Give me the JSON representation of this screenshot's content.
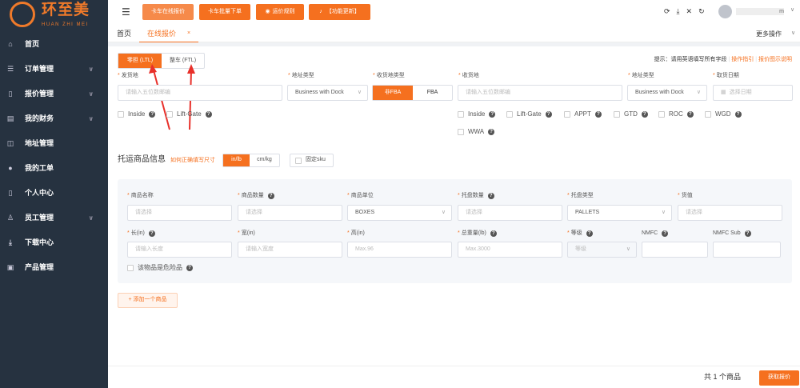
{
  "brand": {
    "name": "环至美",
    "sub": "HUAN ZHI MEI"
  },
  "sidebar": {
    "items": [
      {
        "label": "首页",
        "icon": "home-icon",
        "chev": false
      },
      {
        "label": "订单管理",
        "icon": "sliders-icon",
        "chev": true
      },
      {
        "label": "报价管理",
        "icon": "book-icon",
        "chev": true
      },
      {
        "label": "我的财务",
        "icon": "document-icon",
        "chev": true
      },
      {
        "label": "地址管理",
        "icon": "map-icon",
        "chev": false
      },
      {
        "label": "我的工单",
        "icon": "location-pin-icon",
        "chev": false
      },
      {
        "label": "个人中心",
        "icon": "phone-icon",
        "chev": false
      },
      {
        "label": "员工管理",
        "icon": "user-icon",
        "chev": true
      },
      {
        "label": "下载中心",
        "icon": "download-icon",
        "chev": false
      },
      {
        "label": "产品管理",
        "icon": "box-icon",
        "chev": false
      }
    ]
  },
  "header": {
    "buttons": [
      "卡车在线报价",
      "卡车批量下单",
      "运价规则",
      "【功能更新】"
    ],
    "username": "m"
  },
  "tabs": {
    "items": [
      "首页",
      "在线报价"
    ],
    "more": "更多操作"
  },
  "mode": {
    "ltl": "零担 (LTL)",
    "ftl": "整车 (FTL)"
  },
  "tip": {
    "text": "提示：请用英语填写所有字段",
    "link1": "操作指引",
    "link2": "报价图示说明"
  },
  "origin": {
    "label": "发货地",
    "placeholder": "请输入五位数邮编",
    "addr_label": "地址类型",
    "addr_value": "Business with Dock",
    "options": [
      "Inside",
      "Lift-Gate"
    ]
  },
  "dest": {
    "type_label": "收货地类型",
    "type_options": [
      "非FBA",
      "FBA"
    ],
    "label": "收货地",
    "placeholder": "请输入五位数邮编",
    "addr_label": "地址类型",
    "addr_value": "Business with Dock",
    "date_label": "取货日期",
    "date_placeholder": "选择日期",
    "options": [
      "Inside",
      "Lift-Gate",
      "APPT",
      "GTD",
      "ROC",
      "WGD",
      "WWA"
    ]
  },
  "goods": {
    "title": "托运商品信息",
    "howto": "如何正确填写尺寸",
    "units": [
      "in/lb",
      "cm/kg"
    ],
    "fixed_sku": "固定sku",
    "row1": [
      {
        "label": "商品名称",
        "ph": "请选择",
        "req": true,
        "q": false,
        "val": false
      },
      {
        "label": "商品数量",
        "ph": "请选择",
        "req": true,
        "q": true,
        "val": false
      },
      {
        "label": "商品单位",
        "ph": "BOXES",
        "req": true,
        "q": false,
        "val": true,
        "dd": true
      },
      {
        "label": "托盘数量",
        "ph": "请选择",
        "req": true,
        "q": true,
        "val": false
      },
      {
        "label": "托盘类型",
        "ph": "PALLETS",
        "req": true,
        "q": false,
        "val": true,
        "dd": true
      },
      {
        "label": "货值",
        "ph": "请选择",
        "req": true,
        "q": false,
        "val": false
      }
    ],
    "row2": [
      {
        "label": "长(in)",
        "ph": "请输入长度",
        "req": true,
        "q": true
      },
      {
        "label": "宽(in)",
        "ph": "请输入宽度",
        "req": true,
        "q": false
      },
      {
        "label": "高(in)",
        "ph": "Max.96",
        "req": true,
        "q": false
      },
      {
        "label": "总重量(lb)",
        "ph": "Max.3000",
        "req": true,
        "q": true
      },
      {
        "label": "等级",
        "ph": "等级",
        "req": true,
        "q": true,
        "dd": true
      },
      {
        "label": "NMFC",
        "ph": "",
        "req": false,
        "q": true
      },
      {
        "label": "NMFC Sub",
        "ph": "",
        "req": false,
        "q": true
      }
    ],
    "dangerous": "该物品是危险品",
    "add": "+ 添加一个商品"
  },
  "footer": {
    "total": "共 1 个商品",
    "quote": "获取报价"
  },
  "colors": {
    "accent": "#f5701f",
    "sidebar": "#263240"
  }
}
